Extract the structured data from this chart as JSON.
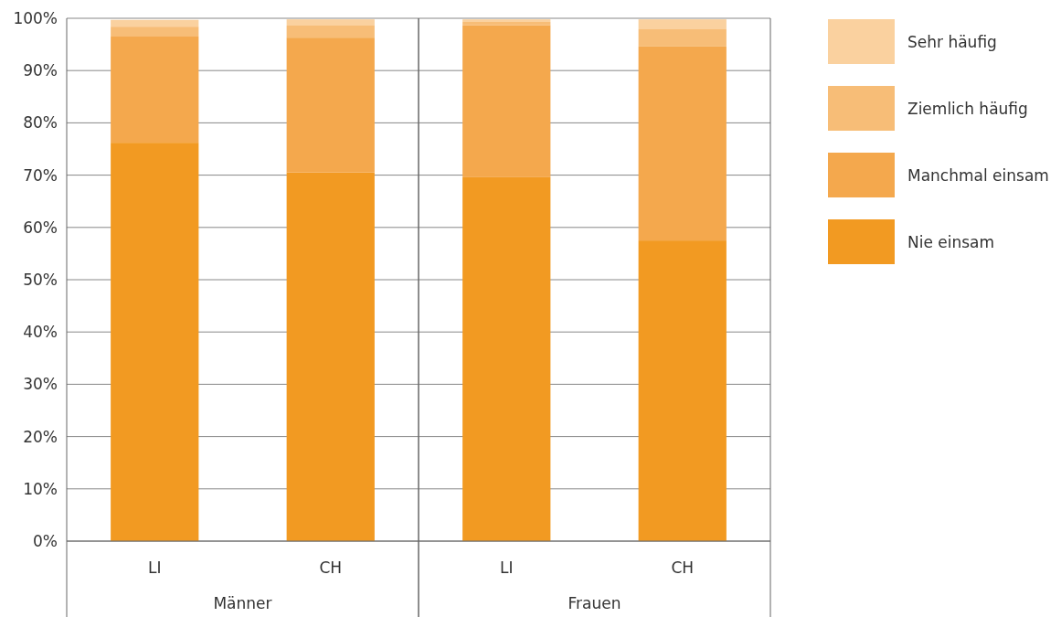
{
  "chart_data": [
    {
      "type": "bar",
      "stacked": true,
      "xlabel": "Männer",
      "categories": [
        "LI",
        "CH"
      ],
      "series": [
        {
          "color": "#f29a22",
          "values": [
            76.2,
            70.5
          ]
        },
        {
          "color": "#f4a84d",
          "values": [
            20.3,
            25.8
          ]
        },
        {
          "color": "#f7bd77",
          "values": [
            1.9,
            2.3
          ]
        },
        {
          "color": "#fad19f",
          "values": [
            1.3,
            1.2
          ]
        }
      ],
      "ylim": [
        0,
        100
      ],
      "yticks": [
        {
          "value": 0,
          "label": "0%"
        },
        {
          "value": 10,
          "label": "10%"
        },
        {
          "value": 20,
          "label": "20%"
        },
        {
          "value": 30,
          "label": "30%"
        },
        {
          "value": 40,
          "label": "40%"
        },
        {
          "value": 50,
          "label": "50%"
        },
        {
          "value": 60,
          "label": "60%"
        },
        {
          "value": 70,
          "label": "70%"
        },
        {
          "value": 80,
          "label": "80%"
        },
        {
          "value": 90,
          "label": "90%"
        },
        {
          "value": 100,
          "label": "100%"
        }
      ],
      "grid": "y"
    },
    {
      "type": "bar",
      "stacked": true,
      "xlabel": "Frauen",
      "categories": [
        "LI",
        "CH"
      ],
      "series": [
        {
          "name": "Nie einsam",
          "color": "#f29a22",
          "values": [
            69.6,
            57.5
          ]
        },
        {
          "name": "Manchmal einsam",
          "color": "#f4a84d",
          "values": [
            29.1,
            37.1
          ]
        },
        {
          "name": "Ziemlich häufig",
          "color": "#f7bd77",
          "values": [
            0.6,
            3.3
          ]
        },
        {
          "name": "Sehr häufig",
          "color": "#fad19f",
          "values": [
            0.5,
            1.9
          ]
        }
      ],
      "ylim": [
        0,
        100
      ],
      "yticks": [
        {
          "value": 0,
          "label": null
        },
        {
          "value": 10,
          "label": null
        },
        {
          "value": 20,
          "label": null
        },
        {
          "value": 30,
          "label": null
        },
        {
          "value": 40,
          "label": null
        },
        {
          "value": 50,
          "label": null
        },
        {
          "value": 60,
          "label": null
        },
        {
          "value": 70,
          "label": null
        },
        {
          "value": 80,
          "label": null
        },
        {
          "value": 90,
          "label": null
        },
        {
          "value": 100,
          "label": null
        }
      ],
      "grid": "y",
      "tick_labels": "x",
      "legend": "right"
    }
  ]
}
